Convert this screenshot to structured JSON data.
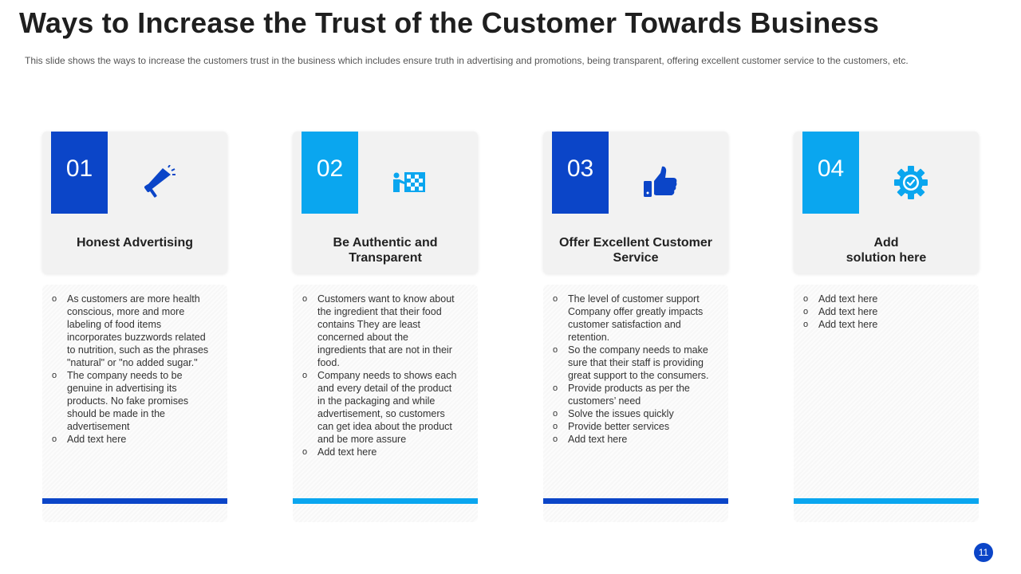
{
  "slide": {
    "title": "Ways to Increase the Trust of the Customer Towards Business",
    "subtitle": "This slide shows the ways to increase the customers trust in the business which includes ensure truth in advertising  and promotions, being transparent, offering  excellent customer service to the customers, etc.",
    "page_number": "11"
  },
  "colors": {
    "dark_blue": "#0b45c8",
    "light_blue": "#0aa6ef"
  },
  "cards": [
    {
      "number": "01",
      "icon": "megaphone-icon",
      "title_lines": [
        "Honest Advertising"
      ],
      "bullets": [
        [
          "As customers are more health",
          "conscious, more and more",
          "labeling of food items",
          "incorporates buzzwords related",
          "to nutrition, such as the phrases",
          "\"natural\" or \"no added sugar.\""
        ],
        [
          "The company needs to be",
          "genuine in advertising its",
          "products. No fake promises",
          "should be made in the",
          "advertisement"
        ],
        [
          "Add text here"
        ]
      ]
    },
    {
      "number": "02",
      "icon": "presentation-board-icon",
      "title_lines": [
        "Be Authentic and",
        "Transparent"
      ],
      "bullets": [
        [
          "Customers want to know about",
          "the ingredient that their food",
          "contains They are least",
          "concerned about the",
          "ingredients that are not in their",
          "food."
        ],
        [
          "Company needs to shows each",
          "and every detail of the product",
          "in the packaging and while",
          "advertisement,  so customers",
          "can get idea about the product",
          "and be more assure"
        ],
        [
          "Add text here"
        ]
      ]
    },
    {
      "number": "03",
      "icon": "thumbs-up-icon",
      "title_lines": [
        "Offer Excellent Customer",
        "Service"
      ],
      "bullets": [
        [
          "The level of customer support",
          "Company offer  greatly impacts",
          "customer satisfaction and",
          "retention."
        ],
        [
          "So the company needs to make",
          "sure that their staff is providing",
          "great support to the consumers."
        ],
        [
          "Provide  products as per the",
          "customers’ need"
        ],
        [
          "Solve  the issues quickly"
        ],
        [
          "Provide  better services"
        ],
        [
          "Add text here"
        ]
      ]
    },
    {
      "number": "04",
      "icon": "gear-check-icon",
      "title_lines": [
        "Add",
        "solution here"
      ],
      "bullets": [
        [
          "Add text here"
        ],
        [
          "Add text here"
        ],
        [
          "Add text here"
        ]
      ]
    }
  ]
}
